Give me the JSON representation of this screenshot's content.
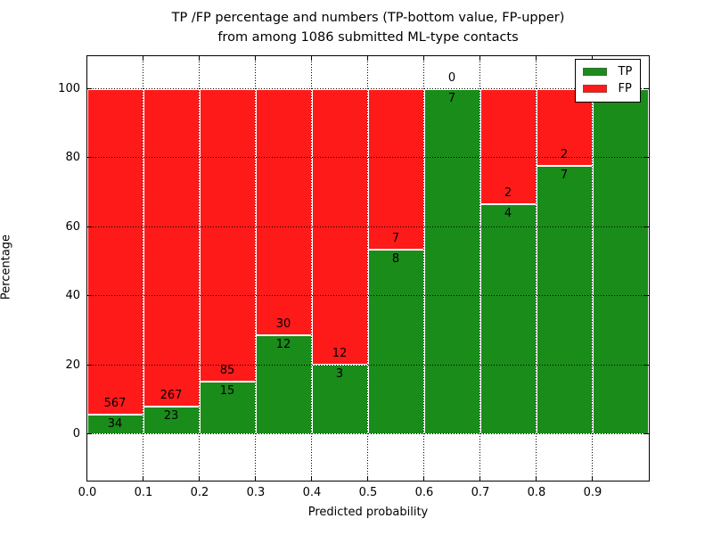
{
  "title": {
    "line1": "TP /FP percentage and numbers (TP-bottom value, FP-upper)",
    "line2": "from among 1086 submitted ML-type contacts"
  },
  "xlabel": "Predicted probability",
  "ylabel": "Percentage",
  "colors": {
    "tp_green": "#1a8c1a",
    "fp_red": "#ff1a1a"
  },
  "chart_data": {
    "type": "bar",
    "variant": "stacked-percentage",
    "title": "TP /FP percentage and numbers (TP-bottom value, FP-upper) from among 1086 submitted ML-type contacts",
    "xlabel": "Predicted probability",
    "ylabel": "Percentage",
    "total_contacts": 1086,
    "bin_edges": [
      0.0,
      0.1,
      0.2,
      0.3,
      0.4,
      0.5,
      0.6,
      0.7,
      0.8,
      0.9,
      1.0
    ],
    "series": [
      {
        "name": "TP",
        "color": "#1a8c1a",
        "counts": [
          34,
          23,
          15,
          12,
          3,
          8,
          7,
          4,
          7,
          1
        ]
      },
      {
        "name": "FP",
        "color": "#ff1a1a",
        "counts": [
          567,
          267,
          85,
          30,
          12,
          7,
          0,
          2,
          2,
          0
        ]
      }
    ],
    "tp_percent": [
      5.7,
      7.9,
      15.0,
      28.6,
      20.0,
      53.3,
      100.0,
      66.7,
      77.8,
      100.0
    ],
    "bar_value_labels": "FP count above segment boundary, TP count below",
    "yticks": [
      0,
      20,
      40,
      60,
      80,
      100
    ],
    "ytick_labels": [
      "0",
      "20",
      "40",
      "60",
      "80",
      "100"
    ],
    "xtick_labels": [
      "0.0",
      "0.1",
      "0.2",
      "0.3",
      "0.4",
      "0.5",
      "0.6",
      "0.7",
      "0.8",
      "0.9"
    ],
    "ylim": [
      -13.5,
      110
    ],
    "xlim": [
      0.0,
      1.0
    ],
    "grid": "dotted",
    "legend_position": "upper right"
  }
}
